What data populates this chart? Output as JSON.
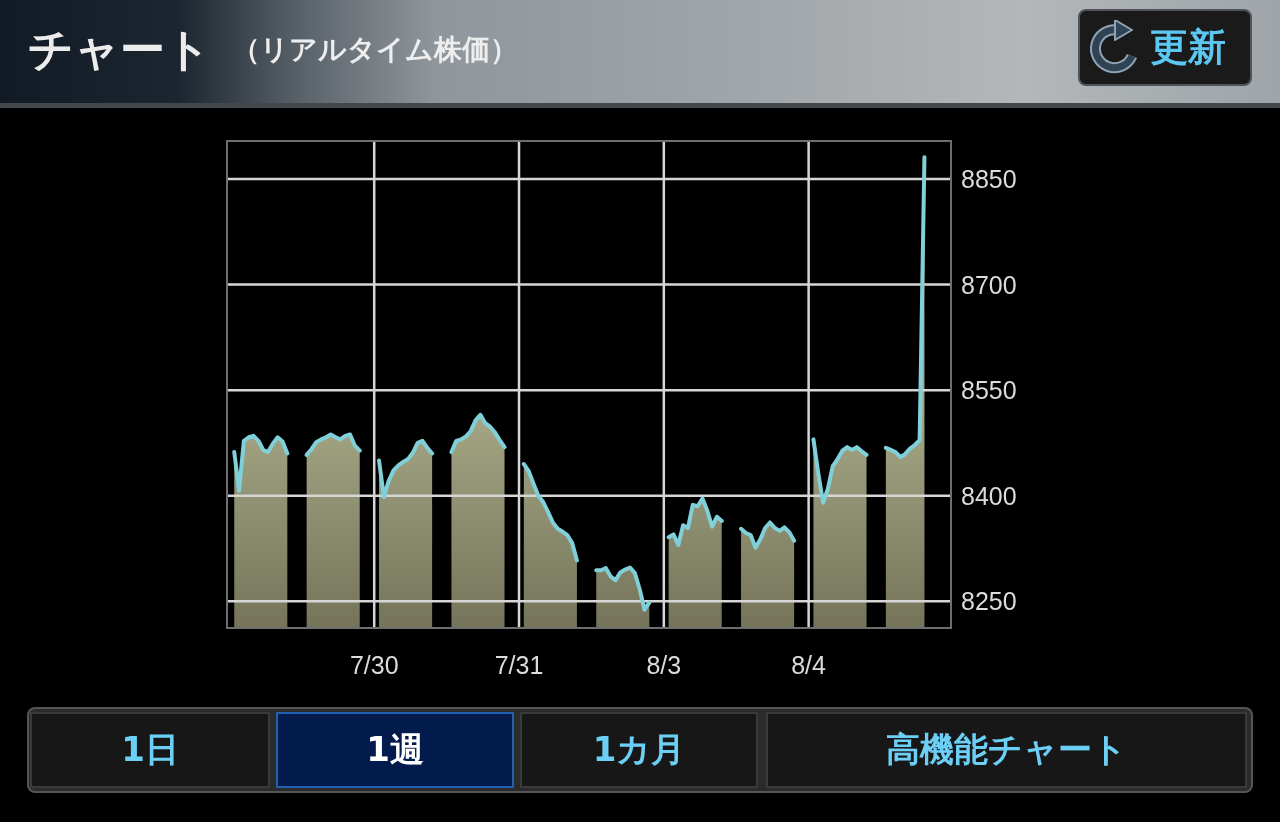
{
  "chart_data": {
    "type": "area",
    "title": "チャート",
    "subtitle": "（リアルタイム株価）",
    "annotations": [
      "更新",
      "1日",
      "1週",
      "1カ月",
      "高機能チャート"
    ],
    "color": "#80d0da",
    "categories": [
      null,
      null,
      null,
      null,
      null,
      null,
      null,
      null,
      null,
      null,
      null,
      null,
      null,
      null,
      null,
      null,
      null,
      null,
      null,
      null,
      null,
      null,
      null,
      null,
      null,
      null,
      null,
      null,
      null,
      null,
      "7/30",
      null,
      null,
      null,
      null,
      null,
      null,
      null,
      null,
      null,
      null,
      null,
      null,
      null,
      null,
      null,
      null,
      null,
      null,
      null,
      null,
      null,
      null,
      null,
      null,
      null,
      null,
      null,
      null,
      null,
      "7/31",
      null,
      null,
      null,
      null,
      null,
      null,
      null,
      null,
      null,
      null,
      null,
      null,
      null,
      null,
      null,
      null,
      null,
      null,
      null,
      null,
      null,
      null,
      null,
      null,
      null,
      null,
      null,
      null,
      null,
      "8/3",
      null,
      null,
      null,
      null,
      null,
      null,
      null,
      null,
      null,
      null,
      null,
      null,
      null,
      null,
      null,
      null,
      null,
      null,
      null,
      null,
      null,
      null,
      null,
      null,
      null,
      null,
      null,
      null,
      null,
      "8/4",
      null,
      null,
      null,
      null,
      null,
      null,
      null,
      null,
      null,
      null,
      null,
      null,
      null,
      null,
      null,
      null,
      null,
      null,
      null,
      null,
      null,
      null,
      null,
      null,
      null,
      null,
      null,
      null,
      null
    ],
    "values": [
      null,
      8462,
      8407,
      8478,
      8483,
      8485,
      8478,
      8465,
      8462,
      8474,
      8483,
      8477,
      8460,
      null,
      null,
      null,
      8458,
      8466,
      8476,
      8480,
      8483,
      8487,
      8483,
      8480,
      8485,
      8487,
      8471,
      8464,
      null,
      null,
      null,
      8450,
      8398,
      8421,
      8436,
      8443,
      8448,
      8452,
      8461,
      8475,
      8478,
      8468,
      8460,
      null,
      null,
      null,
      8462,
      8478,
      8480,
      8484,
      8492,
      8507,
      8515,
      8503,
      8498,
      8490,
      8479,
      8469,
      null,
      null,
      null,
      8445,
      8435,
      8417,
      8400,
      8391,
      8377,
      8362,
      8353,
      8349,
      8344,
      8333,
      8308,
      null,
      null,
      null,
      8294,
      8294,
      8297,
      8285,
      8280,
      8291,
      8295,
      8298,
      8290,
      8267,
      8238,
      8248,
      null,
      null,
      null,
      8341,
      8345,
      8330,
      8358,
      8354,
      8387,
      8385,
      8396,
      8379,
      8356,
      8370,
      8364,
      null,
      null,
      null,
      8353,
      8347,
      8344,
      8326,
      8338,
      8354,
      8362,
      8354,
      8350,
      8355,
      8348,
      8336,
      null,
      null,
      null,
      8480,
      8432,
      8390,
      8410,
      8442,
      8452,
      8464,
      8469,
      8465,
      8469,
      8463,
      8458,
      null,
      null,
      null,
      8468,
      8465,
      8462,
      8455,
      8459,
      8467,
      8472,
      8479,
      8881,
      null,
      null,
      null,
      null,
      null
    ],
    "ylim": [
      8212,
      8904
    ],
    "yticks": [
      8250,
      8400,
      8550,
      8700,
      8850
    ],
    "grid": true
  }
}
